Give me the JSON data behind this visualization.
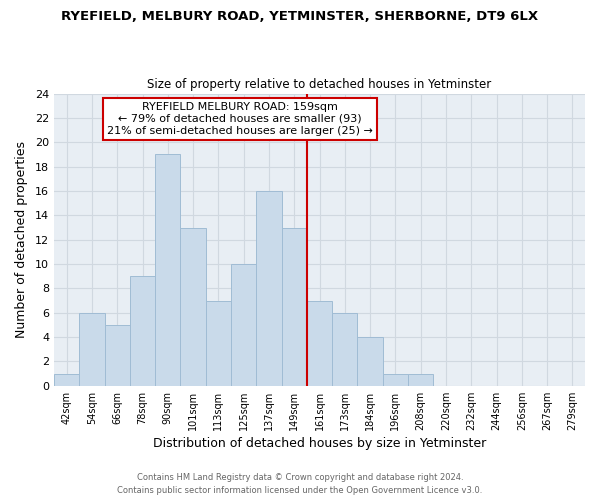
{
  "title": "RYEFIELD, MELBURY ROAD, YETMINSTER, SHERBORNE, DT9 6LX",
  "subtitle": "Size of property relative to detached houses in Yetminster",
  "xlabel": "Distribution of detached houses by size in Yetminster",
  "ylabel": "Number of detached properties",
  "bin_labels": [
    "42sqm",
    "54sqm",
    "66sqm",
    "78sqm",
    "90sqm",
    "101sqm",
    "113sqm",
    "125sqm",
    "137sqm",
    "149sqm",
    "161sqm",
    "173sqm",
    "184sqm",
    "196sqm",
    "208sqm",
    "220sqm",
    "232sqm",
    "244sqm",
    "256sqm",
    "267sqm",
    "279sqm"
  ],
  "bar_heights": [
    1,
    6,
    5,
    9,
    19,
    13,
    7,
    10,
    16,
    13,
    7,
    6,
    4,
    1,
    1,
    0,
    0,
    0,
    0,
    0,
    0
  ],
  "bar_color": "#c9daea",
  "bar_edge_color": "#a0bcd4",
  "highlight_line_color": "#cc0000",
  "ylim": [
    0,
    24
  ],
  "yticks": [
    0,
    2,
    4,
    6,
    8,
    10,
    12,
    14,
    16,
    18,
    20,
    22,
    24
  ],
  "annotation_title": "RYEFIELD MELBURY ROAD: 159sqm",
  "annotation_line1": "← 79% of detached houses are smaller (93)",
  "annotation_line2": "21% of semi-detached houses are larger (25) →",
  "annotation_box_color": "#ffffff",
  "annotation_box_edge": "#cc0000",
  "footer_line1": "Contains HM Land Registry data © Crown copyright and database right 2024.",
  "footer_line2": "Contains public sector information licensed under the Open Government Licence v3.0.",
  "grid_color": "#d0d8e0",
  "background_color": "#ffffff",
  "plot_bg_color": "#e8eef4"
}
